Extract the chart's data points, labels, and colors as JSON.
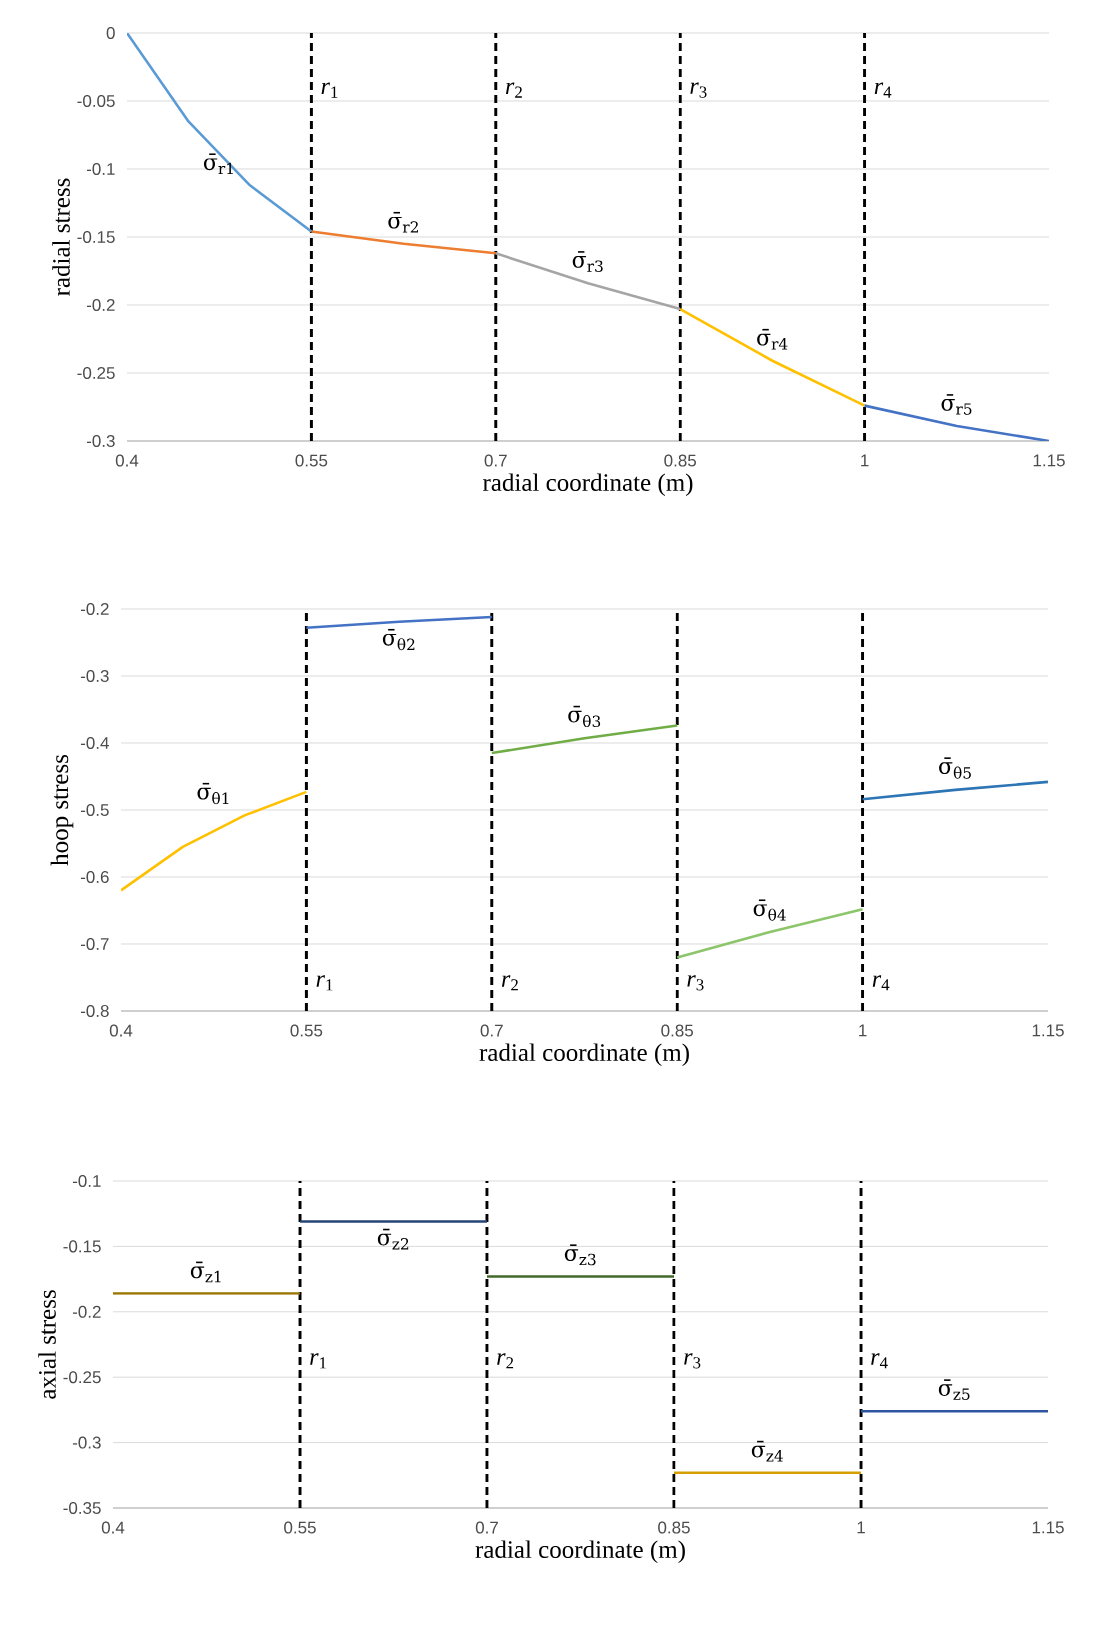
{
  "chart_data": [
    {
      "type": "line",
      "xlabel": "radial coordinate (m)",
      "ylabel": "radial stress",
      "xlim": [
        0.4,
        1.15
      ],
      "ylim": [
        -0.3,
        0
      ],
      "xticks": [
        0.4,
        0.55,
        0.7,
        0.85,
        1,
        1.15
      ],
      "yticks": [
        -0.3,
        -0.25,
        -0.2,
        -0.15,
        -0.1,
        -0.05,
        0
      ],
      "grid": "y",
      "series": [
        {
          "name": "σ̄$_{r1}$",
          "color": "#5b9bd5",
          "x": [
            0.4,
            0.45,
            0.5,
            0.55
          ],
          "values": [
            0,
            -0.065,
            -0.112,
            -0.146
          ]
        },
        {
          "name": "σ̄$_{r2}$",
          "color": "#ed7d31",
          "x": [
            0.55,
            0.625,
            0.7
          ],
          "values": [
            -0.146,
            -0.155,
            -0.162
          ]
        },
        {
          "name": "σ̄$_{r3}$",
          "color": "#a5a5a5",
          "x": [
            0.7,
            0.775,
            0.85
          ],
          "values": [
            -0.162,
            -0.184,
            -0.203
          ]
        },
        {
          "name": "σ̄$_{r4}$",
          "color": "#ffc000",
          "x": [
            0.85,
            0.925,
            1
          ],
          "values": [
            -0.203,
            -0.241,
            -0.274
          ]
        },
        {
          "name": "σ̄$_{r5}$",
          "color": "#4472c4",
          "x": [
            1,
            1.075,
            1.15
          ],
          "values": [
            -0.274,
            -0.289,
            -0.3
          ]
        }
      ],
      "ref_lines": [
        {
          "axis": "x",
          "value": 0.55,
          "label": "*r*$_{1}$",
          "color": "#000000",
          "line_style": "dashed"
        },
        {
          "axis": "x",
          "value": 0.7,
          "label": "*r*$_{2}$",
          "color": "#000000",
          "line_style": "dashed"
        },
        {
          "axis": "x",
          "value": 0.85,
          "label": "*r*$_{3}$",
          "color": "#000000",
          "line_style": "dashed"
        },
        {
          "axis": "x",
          "value": 1,
          "label": "*r*$_{4}$",
          "color": "#000000",
          "line_style": "dashed"
        }
      ]
    },
    {
      "type": "line",
      "xlabel": "radial coordinate (m)",
      "ylabel": "hoop stress",
      "xlim": [
        0.4,
        1.15
      ],
      "ylim": [
        -0.8,
        -0.2
      ],
      "xticks": [
        0.4,
        0.55,
        0.7,
        0.85,
        1,
        1.15
      ],
      "yticks": [
        -0.8,
        -0.7,
        -0.6,
        -0.5,
        -0.4,
        -0.3,
        -0.2
      ],
      "grid": "y",
      "series": [
        {
          "name": "σ̄$_{θ1}$",
          "color": "#ffc000",
          "x": [
            0.4,
            0.45,
            0.5,
            0.55
          ],
          "values": [
            -0.62,
            -0.555,
            -0.508,
            -0.473
          ]
        },
        {
          "name": "σ̄$_{θ2}$",
          "color": "#4472c4",
          "x": [
            0.55,
            0.625,
            0.7
          ],
          "values": [
            -0.228,
            -0.219,
            -0.212
          ]
        },
        {
          "name": "σ̄$_{θ3}$",
          "color": "#70ad47",
          "x": [
            0.7,
            0.775,
            0.85
          ],
          "values": [
            -0.415,
            -0.393,
            -0.374
          ]
        },
        {
          "name": "σ̄$_{θ4}$",
          "color": "#8cc56a",
          "x": [
            0.85,
            0.925,
            1
          ],
          "values": [
            -0.72,
            -0.682,
            -0.648
          ]
        },
        {
          "name": "σ̄$_{θ5}$",
          "color": "#2e75b6",
          "x": [
            1,
            1.075,
            1.15
          ],
          "values": [
            -0.484,
            -0.47,
            -0.458
          ]
        }
      ],
      "ref_lines": [
        {
          "axis": "x",
          "value": 0.55,
          "label": "*r*$_{1}$",
          "color": "#000000",
          "line_style": "dashed"
        },
        {
          "axis": "x",
          "value": 0.7,
          "label": "*r*$_{2}$",
          "color": "#000000",
          "line_style": "dashed"
        },
        {
          "axis": "x",
          "value": 0.85,
          "label": "*r*$_{3}$",
          "color": "#000000",
          "line_style": "dashed"
        },
        {
          "axis": "x",
          "value": 1,
          "label": "*r*$_{4}$",
          "color": "#000000",
          "line_style": "dashed"
        }
      ]
    },
    {
      "type": "line",
      "xlabel": "radial coordinate (m)",
      "ylabel": "axial stress",
      "xlim": [
        0.4,
        1.15
      ],
      "ylim": [
        -0.35,
        -0.1
      ],
      "xticks": [
        0.4,
        0.55,
        0.7,
        0.85,
        1,
        1.15
      ],
      "yticks": [
        -0.35,
        -0.3,
        -0.25,
        -0.2,
        -0.15,
        -0.1
      ],
      "grid": "y",
      "series": [
        {
          "name": "σ̄$_{z1}$",
          "color": "#997300",
          "x": [
            0.4,
            0.55
          ],
          "values": [
            -0.186,
            -0.186
          ]
        },
        {
          "name": "σ̄$_{z2}$",
          "color": "#264478",
          "x": [
            0.55,
            0.7
          ],
          "values": [
            -0.131,
            -0.131
          ]
        },
        {
          "name": "σ̄$_{z3}$",
          "color": "#43682b",
          "x": [
            0.7,
            0.85
          ],
          "values": [
            -0.173,
            -0.173
          ]
        },
        {
          "name": "σ̄$_{z4}$",
          "color": "#d4a000",
          "x": [
            0.85,
            1
          ],
          "values": [
            -0.323,
            -0.323
          ]
        },
        {
          "name": "σ̄$_{z5}$",
          "color": "#2f55a0",
          "x": [
            1,
            1.15
          ],
          "values": [
            -0.276,
            -0.276
          ]
        }
      ],
      "ref_lines": [
        {
          "axis": "x",
          "value": 0.55,
          "label": "*r*$_{1}$",
          "color": "#000000",
          "line_style": "dashed"
        },
        {
          "axis": "x",
          "value": 0.7,
          "label": "*r*$_{2}$",
          "color": "#000000",
          "line_style": "dashed"
        },
        {
          "axis": "x",
          "value": 0.85,
          "label": "*r*$_{3}$",
          "color": "#000000",
          "line_style": "dashed"
        },
        {
          "axis": "x",
          "value": 1,
          "label": "*r*$_{4}$",
          "color": "#000000",
          "line_style": "dashed"
        }
      ]
    }
  ]
}
